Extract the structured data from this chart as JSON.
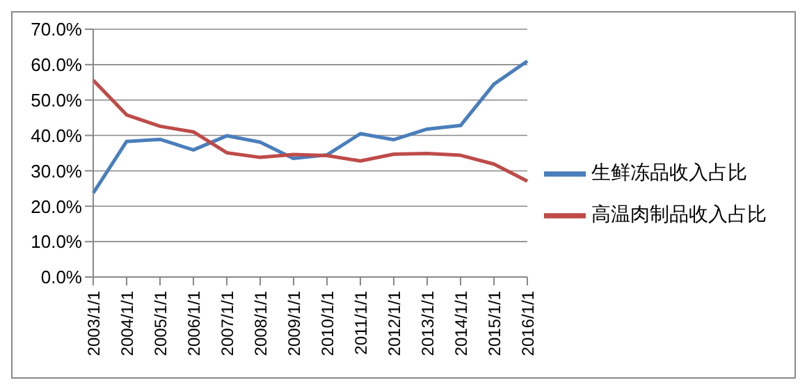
{
  "chart_data": {
    "type": "line",
    "categories": [
      "2003/1/1",
      "2004/1/1",
      "2005/1/1",
      "2006/1/1",
      "2007/1/1",
      "2008/1/1",
      "2009/1/1",
      "2010/1/1",
      "2011/1/1",
      "2012/1/1",
      "2013/1/1",
      "2014/1/1",
      "2015/1/1",
      "2016/1/1"
    ],
    "series": [
      {
        "name": "生鲜冻品收入占比",
        "color": "#4a7ebb",
        "values": [
          23.7,
          38.3,
          38.9,
          35.9,
          39.9,
          38.1,
          33.5,
          34.5,
          40.5,
          38.8,
          41.8,
          42.8,
          54.5,
          61.0
        ]
      },
      {
        "name": "高温肉制品收入占比",
        "color": "#be4b48",
        "values": [
          55.6,
          45.8,
          42.6,
          41.0,
          35.1,
          33.8,
          34.6,
          34.3,
          32.8,
          34.7,
          34.9,
          34.4,
          31.9,
          27.1
        ]
      }
    ],
    "ylim": [
      0,
      70
    ],
    "yticks": [
      {
        "value": 0,
        "label": "0.0%"
      },
      {
        "value": 10,
        "label": "10.0%"
      },
      {
        "value": 20,
        "label": "20.0%"
      },
      {
        "value": 30,
        "label": "30.0%"
      },
      {
        "value": 40,
        "label": "40.0%"
      },
      {
        "value": 50,
        "label": "50.0%"
      },
      {
        "value": 60,
        "label": "60.0%"
      },
      {
        "value": 70,
        "label": "70.0%"
      }
    ],
    "grid": "y",
    "legend": "right",
    "marker": "none",
    "line_style": "solid"
  }
}
